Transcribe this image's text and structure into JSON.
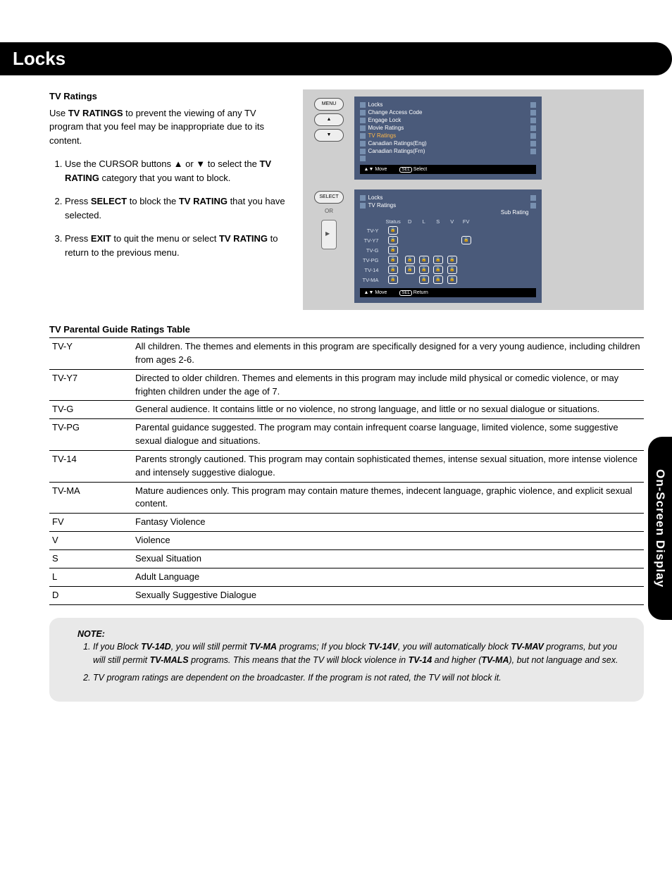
{
  "header": {
    "title": "Locks"
  },
  "side_tab": {
    "label": "On-Screen Display"
  },
  "section": {
    "heading": "TV Ratings",
    "intro_pre": "Use ",
    "intro_bold": "TV RATINGS",
    "intro_post": " to prevent the viewing of any TV program that you feel may be inappropriate due to its content.",
    "step1_a": "Use the CURSOR buttons ▲ or ▼ to select the ",
    "step1_b": "TV RATING",
    "step1_c": " category that you want to block.",
    "step2_a": "Press ",
    "step2_b": "SELECT",
    "step2_c": " to block the ",
    "step2_d": "TV RATING",
    "step2_e": " that you have selected.",
    "step3_a": "Press ",
    "step3_b": "EXIT",
    "step3_c": " to quit the menu or select ",
    "step3_d": "TV RATING",
    "step3_e": " to return to the previous menu."
  },
  "osd1": {
    "remote_btn": "MENU",
    "title": "Locks",
    "items": [
      "Change Access Code",
      "Engage Lock",
      "Movie Ratings",
      "TV Ratings",
      "Canadian Ratings(Eng)",
      "Canadian Ratings(Frn)"
    ],
    "selected_index": 3,
    "foot_move": "Move",
    "foot_sel": "Select",
    "foot_sel_key": "SEL"
  },
  "osd2": {
    "remote_btn": "SELECT",
    "or_label": "OR",
    "title": "Locks",
    "subtitle": "TV Ratings",
    "sub_rating_label": "Sub Rating",
    "col_status": "Status",
    "cols": [
      "D",
      "L",
      "S",
      "V",
      "FV"
    ],
    "rows": [
      {
        "label": "TV-Y",
        "status": true,
        "sub": [
          false,
          false,
          false,
          false,
          false
        ]
      },
      {
        "label": "TV-Y7",
        "status": true,
        "sub": [
          false,
          false,
          false,
          false,
          true
        ]
      },
      {
        "label": "TV-G",
        "status": true,
        "sub": [
          false,
          false,
          false,
          false,
          false
        ]
      },
      {
        "label": "TV-PG",
        "status": true,
        "sub": [
          true,
          true,
          true,
          true,
          false
        ]
      },
      {
        "label": "TV-14",
        "status": true,
        "sub": [
          true,
          true,
          true,
          true,
          false
        ]
      },
      {
        "label": "TV-MA",
        "status": true,
        "sub": [
          false,
          true,
          true,
          true,
          false
        ]
      }
    ],
    "foot_move": "Move",
    "foot_return": "Return",
    "foot_sel_key": "SEL"
  },
  "ratings_table": {
    "heading": "TV Parental Guide Ratings Table",
    "rows": [
      {
        "code": "TV-Y",
        "desc": "All children. The themes and elements in this program are specifically designed for a very young audience, including children from ages 2-6."
      },
      {
        "code": "TV-Y7",
        "desc": "Directed to older children. Themes and elements in this program may include mild physical or comedic violence, or may frighten children under the age of 7."
      },
      {
        "code": "TV-G",
        "desc": "General audience. It contains little or no violence, no strong language, and little or no sexual dialogue or situations."
      },
      {
        "code": "TV-PG",
        "desc": "Parental guidance suggested. The program may contain infrequent coarse language, limited violence, some suggestive sexual dialogue and situations."
      },
      {
        "code": "TV-14",
        "desc": "Parents strongly cautioned. This program may contain sophisticated themes, intense sexual situation, more intense violence and intensely suggestive dialogue."
      },
      {
        "code": "TV-MA",
        "desc": "Mature audiences only. This program may contain mature themes, indecent language, graphic violence, and explicit sexual content."
      },
      {
        "code": "FV",
        "desc": "Fantasy Violence"
      },
      {
        "code": "V",
        "desc": "Violence"
      },
      {
        "code": "S",
        "desc": "Sexual Situation"
      },
      {
        "code": "L",
        "desc": "Adult Language"
      },
      {
        "code": "D",
        "desc": "Sexually Suggestive Dialogue"
      }
    ]
  },
  "note": {
    "label": "NOTE:",
    "n1_a": "If you Block ",
    "n1_b": "TV-14D",
    "n1_c": ", you will still permit ",
    "n1_d": "TV-MA",
    "n1_e": " programs; If you block ",
    "n1_f": "TV-14V",
    "n1_g": ", you will automatically block ",
    "n1_h": "TV-MAV",
    "n1_i": " programs, but you will still permit ",
    "n1_j": "TV-MALS",
    "n1_k": " programs. This means that the TV will block violence in ",
    "n1_l": "TV-14",
    "n1_m": " and higher (",
    "n1_n": "TV-MA",
    "n1_o": "), but not language and sex.",
    "n2": "TV program ratings are dependent on the broadcaster. If the program is not rated, the TV will not block it."
  }
}
